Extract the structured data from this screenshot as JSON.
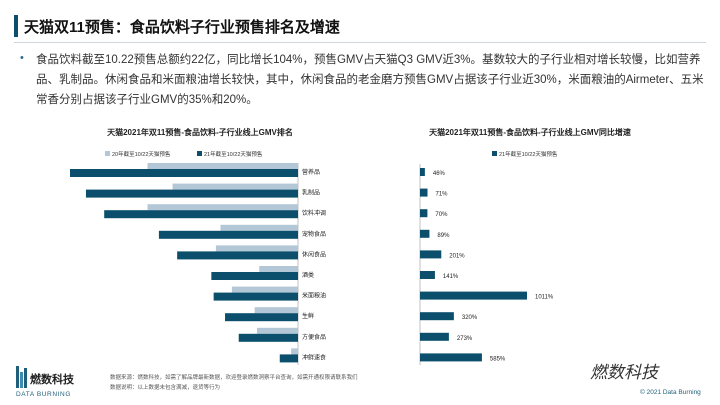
{
  "header": {
    "title": "天猫双11预售：食品饮料子行业预售排名及增速"
  },
  "summary": "食品饮料截至10.22预售总额约22亿，同比增长104%，预售GMV占天猫Q3 GMV近3%。基数较大的子行业相对增长较慢，比如营养品、乳制品。休闲食品和米面粮油增长较快，其中，休闲食品的老金磨方预售GMV占据该子行业近30%，米面粮油的Airmeter、五米常香分别占据该子行业GMV的35%和20%。",
  "chart_data": [
    {
      "type": "bar",
      "orientation": "horizontal",
      "title": "天猫2021年双11预售-食品饮料-子行业线上GMV排名",
      "categories": [
        "营养品",
        "乳制品",
        "饮料冲调",
        "宠物食品",
        "休闲食品",
        "酒类",
        "米面粮油",
        "生鲜",
        "方便食品",
        "冲鲜速食"
      ],
      "series": [
        {
          "name": "20年截至10/22天猫预售",
          "color": "#b3c7d6",
          "values": [
            66,
            55,
            66,
            34,
            36,
            17,
            29,
            19,
            18,
            3
          ]
        },
        {
          "name": "21年截至10/22天猫预售",
          "color": "#0b4f6c",
          "values": [
            100,
            93,
            85,
            61,
            53,
            38,
            37,
            32,
            26,
            8
          ]
        }
      ],
      "xlim": [
        0,
        100
      ]
    },
    {
      "type": "bar",
      "orientation": "horizontal",
      "title": "天猫2021年双11预售-食品饮料-子行业线上GMV同比增速",
      "categories": [
        "营养品",
        "乳制品",
        "饮料冲调",
        "宠物食品",
        "休闲食品",
        "酒类",
        "米面粮油",
        "生鲜",
        "方便食品",
        "冲鲜速食"
      ],
      "series": [
        {
          "name": "21年截至10/22天猫预售",
          "color": "#0b4f6c",
          "values": [
            46,
            71,
            70,
            89,
            201,
            141,
            1011,
            320,
            273,
            585
          ]
        }
      ],
      "data_labels": [
        "46%",
        "71%",
        "70%",
        "89%",
        "201%",
        "141%",
        "1011%",
        "320%",
        "273%",
        "585%"
      ],
      "xlim": [
        0,
        1011
      ]
    }
  ],
  "footer": {
    "logo_cn": "燃数科技",
    "logo_en": "DATA BURNING",
    "source": "数据来源：燃数科技，如需了解品牌最新数据，欢迎登录燃数洞察平台查询，如需开通权限请联系我们",
    "note": "数据说明：以上数据未包含满减，退货等行为",
    "watermark": "燃数科技",
    "copyright": "© 2021 Data Burning"
  },
  "colors": {
    "accent": "#0b4f6c",
    "light": "#b3c7d6"
  }
}
